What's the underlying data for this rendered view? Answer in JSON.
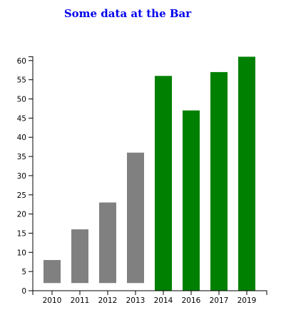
{
  "chart_data": {
    "type": "bar",
    "title": "Some data at the Bar",
    "categories": [
      "2010",
      "2011",
      "2012",
      "2013",
      "2014",
      "2016",
      "2017",
      "2019"
    ],
    "series": [
      {
        "values": [
          8,
          16,
          23,
          36,
          56,
          47,
          57,
          61
        ],
        "bar_base": [
          2,
          2,
          2,
          2,
          0,
          0,
          0,
          0
        ],
        "colors": [
          "#808080",
          "#808080",
          "#808080",
          "#808080",
          "#008000",
          "#008000",
          "#008000",
          "#008000"
        ]
      }
    ],
    "y_ticks": [
      0,
      5,
      10,
      15,
      20,
      25,
      30,
      35,
      40,
      45,
      50,
      55,
      60
    ],
    "ylim": [
      0,
      61
    ],
    "xlabel": "",
    "ylabel": "",
    "grid": false,
    "legend": false
  }
}
